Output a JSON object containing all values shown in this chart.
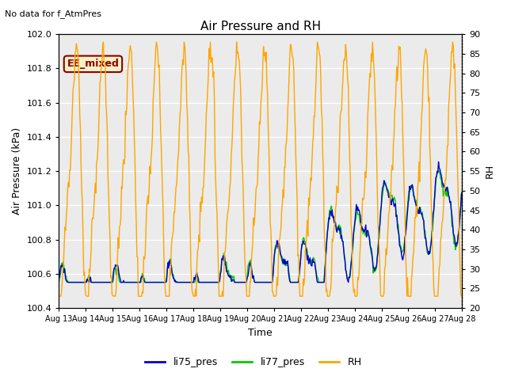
{
  "title": "Air Pressure and RH",
  "top_left_text": "No data for f_AtmPres",
  "annotation_text": "EE_mixed",
  "annotation_bg": "#f5f0c8",
  "annotation_border": "#8b0000",
  "annotation_text_color": "#8b0000",
  "xlabel": "Time",
  "ylabel_left": "Air Pressure (kPa)",
  "ylabel_right": "RH",
  "ylim_left": [
    100.4,
    102.0
  ],
  "ylim_right": [
    20,
    90
  ],
  "yticks_left": [
    100.4,
    100.6,
    100.8,
    101.0,
    101.2,
    101.4,
    101.6,
    101.8,
    102.0
  ],
  "yticks_right": [
    20,
    25,
    30,
    35,
    40,
    45,
    50,
    55,
    60,
    65,
    70,
    75,
    80,
    85,
    90
  ],
  "xtick_labels": [
    "Aug 13",
    "Aug 14",
    "Aug 15",
    "Aug 16",
    "Aug 17",
    "Aug 18",
    "Aug 19",
    "Aug 20",
    "Aug 21",
    "Aug 22",
    "Aug 23",
    "Aug 24",
    "Aug 25",
    "Aug 26",
    "Aug 27",
    "Aug 28"
  ],
  "color_li75": "#0000cd",
  "color_li77": "#00cc00",
  "color_rh": "#ffa500",
  "legend_entries": [
    "li75_pres",
    "li77_pres",
    "RH"
  ],
  "bg_color": "#ebebeb",
  "fig_bg": "#ffffff",
  "grid_color": "#ffffff",
  "n_points": 600
}
